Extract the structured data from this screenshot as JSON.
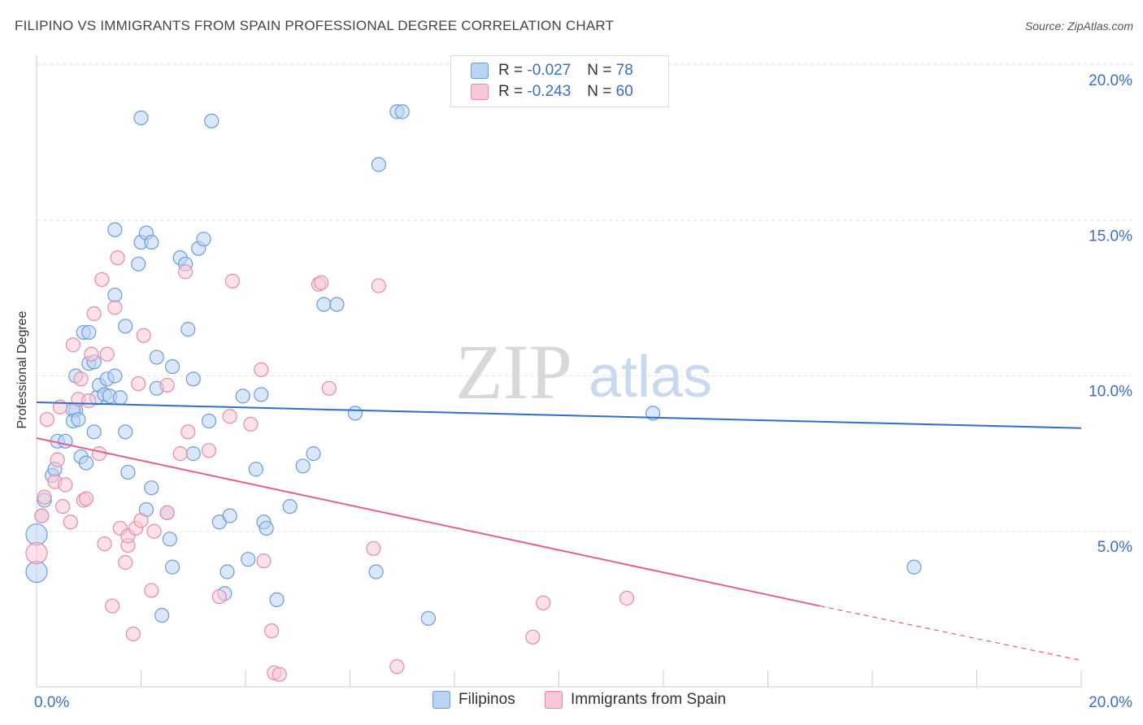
{
  "title": "FILIPINO VS IMMIGRANTS FROM SPAIN PROFESSIONAL DEGREE CORRELATION CHART",
  "source": "Source: ZipAtlas.com",
  "watermark": {
    "zip": "ZIP",
    "atlas": "atlas"
  },
  "legend_top": {
    "rows": [
      {
        "r_label": "R =",
        "r_value": "-0.027",
        "n_label": "N =",
        "n_value": "78",
        "fill": "#b9d3f2",
        "stroke": "#6c9be0"
      },
      {
        "r_label": "R =",
        "r_value": "-0.243",
        "n_label": "N =",
        "n_value": "60",
        "fill": "#f9c8d6",
        "stroke": "#e88aa8"
      }
    ]
  },
  "chart_data": {
    "type": "scatter",
    "title": "FILIPINO VS IMMIGRANTS FROM SPAIN PROFESSIONAL DEGREE CORRELATION CHART",
    "xlabel": "",
    "ylabel": "Professional Degree",
    "xlim": [
      0,
      20
    ],
    "ylim": [
      0,
      20.5
    ],
    "x_tick_labels": [
      "0.0%",
      "20.0%"
    ],
    "y_ticks": [
      5,
      10,
      15,
      20
    ],
    "y_tick_labels": [
      "5.0%",
      "10.0%",
      "15.0%",
      "20.0%"
    ],
    "grid": true,
    "legend_position": "bottom",
    "series": [
      {
        "name": "Filipinos",
        "color": "#6c9be0",
        "fill": "#b9d3f2",
        "trend": {
          "x0": 0.0,
          "y0": 9.15,
          "x1": 20.0,
          "y1": 8.32,
          "color": "#2f6fc7"
        },
        "points": [
          [
            0.0,
            3.7
          ],
          [
            0.0,
            4.9
          ],
          [
            0.1,
            5.5
          ],
          [
            0.15,
            6.0
          ],
          [
            0.3,
            6.8
          ],
          [
            0.35,
            7.0
          ],
          [
            0.4,
            7.9
          ],
          [
            0.55,
            7.9
          ],
          [
            0.75,
            8.9
          ],
          [
            0.7,
            8.9
          ],
          [
            0.7,
            8.55
          ],
          [
            0.8,
            8.6
          ],
          [
            0.75,
            10.0
          ],
          [
            0.85,
            7.4
          ],
          [
            0.95,
            7.2
          ],
          [
            0.9,
            11.4
          ],
          [
            1.0,
            11.4
          ],
          [
            1.0,
            10.4
          ],
          [
            1.1,
            10.45
          ],
          [
            1.1,
            8.2
          ],
          [
            1.15,
            9.3
          ],
          [
            1.2,
            9.7
          ],
          [
            1.3,
            9.4
          ],
          [
            1.35,
            9.9
          ],
          [
            1.4,
            9.35
          ],
          [
            1.5,
            10.0
          ],
          [
            1.6,
            9.3
          ],
          [
            1.5,
            12.6
          ],
          [
            1.5,
            14.7
          ],
          [
            1.7,
            11.6
          ],
          [
            1.7,
            8.2
          ],
          [
            1.75,
            6.9
          ],
          [
            1.95,
            13.6
          ],
          [
            2.0,
            14.3
          ],
          [
            2.1,
            14.6
          ],
          [
            2.2,
            14.3
          ],
          [
            2.3,
            10.6
          ],
          [
            2.3,
            9.6
          ],
          [
            2.1,
            5.7
          ],
          [
            2.2,
            6.4
          ],
          [
            2.5,
            5.6
          ],
          [
            2.55,
            4.75
          ],
          [
            2.6,
            3.85
          ],
          [
            2.6,
            10.3
          ],
          [
            2.75,
            13.8
          ],
          [
            2.85,
            13.6
          ],
          [
            2.9,
            11.5
          ],
          [
            3.0,
            9.9
          ],
          [
            3.0,
            7.5
          ],
          [
            3.1,
            14.1
          ],
          [
            3.2,
            14.4
          ],
          [
            3.3,
            8.55
          ],
          [
            3.5,
            5.3
          ],
          [
            3.6,
            3.0
          ],
          [
            3.65,
            3.7
          ],
          [
            3.7,
            5.5
          ],
          [
            2.0,
            18.3
          ],
          [
            3.35,
            18.2
          ],
          [
            3.95,
            9.35
          ],
          [
            4.05,
            4.1
          ],
          [
            4.2,
            7.0
          ],
          [
            4.3,
            9.4
          ],
          [
            4.35,
            5.3
          ],
          [
            4.4,
            5.1
          ],
          [
            4.6,
            2.8
          ],
          [
            4.85,
            5.8
          ],
          [
            5.1,
            7.1
          ],
          [
            5.3,
            7.5
          ],
          [
            5.5,
            12.3
          ],
          [
            5.75,
            12.3
          ],
          [
            6.1,
            8.8
          ],
          [
            6.5,
            3.7
          ],
          [
            6.55,
            16.8
          ],
          [
            6.9,
            18.5
          ],
          [
            7.0,
            18.5
          ],
          [
            7.5,
            2.2
          ],
          [
            11.8,
            8.8
          ],
          [
            16.8,
            3.85
          ],
          [
            2.4,
            2.3
          ]
        ]
      },
      {
        "name": "Immigrants from Spain",
        "color": "#e88aa8",
        "fill": "#f9c8d6",
        "trend": {
          "x0": 0.0,
          "y0": 8.0,
          "x1": 15.0,
          "y1": 2.6,
          "dash_x1": 20.0,
          "dash_y1": 0.85,
          "color": "#e0628f"
        },
        "points": [
          [
            0.0,
            4.3
          ],
          [
            0.1,
            5.5
          ],
          [
            0.15,
            6.1
          ],
          [
            0.2,
            8.6
          ],
          [
            0.35,
            6.6
          ],
          [
            0.4,
            7.3
          ],
          [
            0.45,
            9.0
          ],
          [
            0.5,
            5.8
          ],
          [
            0.55,
            6.5
          ],
          [
            0.65,
            5.3
          ],
          [
            0.7,
            11.0
          ],
          [
            0.8,
            9.25
          ],
          [
            0.85,
            9.9
          ],
          [
            0.9,
            6.0
          ],
          [
            0.95,
            6.05
          ],
          [
            1.0,
            9.2
          ],
          [
            1.05,
            10.7
          ],
          [
            1.1,
            12.0
          ],
          [
            1.2,
            7.5
          ],
          [
            1.25,
            13.1
          ],
          [
            1.3,
            4.6
          ],
          [
            1.35,
            10.7
          ],
          [
            1.45,
            2.6
          ],
          [
            1.5,
            12.2
          ],
          [
            1.55,
            13.8
          ],
          [
            1.6,
            5.1
          ],
          [
            1.7,
            4.0
          ],
          [
            1.75,
            4.55
          ],
          [
            1.75,
            4.85
          ],
          [
            1.85,
            1.7
          ],
          [
            1.9,
            5.1
          ],
          [
            1.95,
            9.75
          ],
          [
            2.0,
            5.35
          ],
          [
            2.05,
            11.3
          ],
          [
            2.2,
            3.1
          ],
          [
            2.25,
            5.0
          ],
          [
            2.5,
            5.6
          ],
          [
            2.5,
            9.7
          ],
          [
            2.75,
            7.5
          ],
          [
            2.85,
            13.35
          ],
          [
            2.9,
            8.2
          ],
          [
            3.3,
            7.6
          ],
          [
            3.5,
            2.9
          ],
          [
            3.75,
            13.05
          ],
          [
            4.1,
            8.45
          ],
          [
            4.3,
            10.2
          ],
          [
            4.35,
            4.05
          ],
          [
            4.5,
            1.8
          ],
          [
            4.55,
            0.45
          ],
          [
            4.65,
            0.4
          ],
          [
            5.4,
            12.95
          ],
          [
            5.45,
            13.0
          ],
          [
            5.6,
            9.6
          ],
          [
            6.45,
            4.45
          ],
          [
            6.55,
            12.9
          ],
          [
            6.9,
            0.65
          ],
          [
            9.5,
            1.6
          ],
          [
            9.7,
            2.7
          ],
          [
            11.3,
            2.85
          ],
          [
            3.7,
            8.7
          ]
        ]
      }
    ]
  }
}
